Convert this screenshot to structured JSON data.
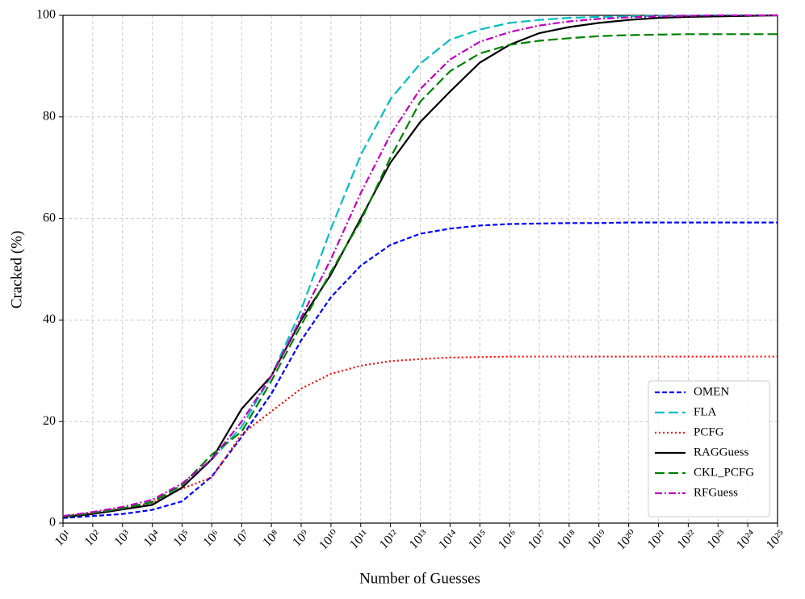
{
  "chart_data": {
    "type": "line",
    "xlabel": "Number of Guesses",
    "ylabel": "Cracked (%)",
    "xscale": "log",
    "grid": true,
    "legend": "lower right",
    "x": [
      10.0,
      100.0,
      1000.0,
      10000.0,
      100000.0,
      1000000.0,
      10000000.0,
      100000000.0,
      1000000000.0,
      10000000000.0,
      100000000000.0,
      1000000000000.0,
      10000000000000.0,
      100000000000000.0,
      1000000000000000.0,
      1e+16,
      1e+17,
      1e+18,
      1e+19,
      1e+20,
      1e+21,
      1e+22,
      1e+23,
      1e+24,
      1e+25
    ],
    "xlim": [
      10.0,
      1e+25
    ],
    "xticks": [
      {
        "value": 10.0,
        "label": "10¹"
      },
      {
        "value": 100.0,
        "label": "10²"
      },
      {
        "value": 1000.0,
        "label": "10³"
      },
      {
        "value": 10000.0,
        "label": "10⁴"
      },
      {
        "value": 100000.0,
        "label": "10⁵"
      },
      {
        "value": 1000000.0,
        "label": "10⁶"
      },
      {
        "value": 10000000.0,
        "label": "10⁷"
      },
      {
        "value": 100000000.0,
        "label": "10⁸"
      },
      {
        "value": 1000000000.0,
        "label": "10⁹"
      },
      {
        "value": 10000000000.0,
        "label": "10¹⁰"
      },
      {
        "value": 100000000000.0,
        "label": "10¹¹"
      },
      {
        "value": 1000000000000.0,
        "label": "10¹²"
      },
      {
        "value": 10000000000000.0,
        "label": "10¹³"
      },
      {
        "value": 100000000000000.0,
        "label": "10¹⁴"
      },
      {
        "value": 1000000000000000.0,
        "label": "10¹⁵"
      },
      {
        "value": 1e+16,
        "label": "10¹⁶"
      },
      {
        "value": 1e+17,
        "label": "10¹⁷"
      },
      {
        "value": 1e+18,
        "label": "10¹⁸"
      },
      {
        "value": 1e+19,
        "label": "10¹⁹"
      },
      {
        "value": 1e+20,
        "label": "10²⁰"
      },
      {
        "value": 1e+21,
        "label": "10²¹"
      },
      {
        "value": 1e+22,
        "label": "10²²"
      },
      {
        "value": 1e+23,
        "label": "10²³"
      },
      {
        "value": 1e+24,
        "label": "10²⁴"
      },
      {
        "value": 1e+25,
        "label": "10²⁵"
      }
    ],
    "ylim": [
      0,
      100
    ],
    "yticks": [
      0,
      20,
      40,
      60,
      80,
      100
    ],
    "series": [
      {
        "name": "OMEN",
        "color": "#0000ff",
        "linestyle": "--",
        "values": [
          1.0,
          1.4,
          1.8,
          2.6,
          4.3,
          9.2,
          17,
          25.5,
          36,
          44.5,
          50.7,
          54.8,
          57,
          58,
          58.6,
          58.9,
          59.0,
          59.1,
          59.1,
          59.2,
          59.2,
          59.2,
          59.2,
          59.2,
          59.2
        ]
      },
      {
        "name": "FLA",
        "color": "#00bfbf",
        "linestyle": "long-dash",
        "values": [
          1.3,
          2.0,
          2.9,
          4.0,
          7.0,
          12.5,
          19,
          29,
          42,
          58,
          72.5,
          83.5,
          90.5,
          95.2,
          97.2,
          98.5,
          99.1,
          99.5,
          99.7,
          99.8,
          99.9,
          99.9,
          100,
          100,
          100
        ]
      },
      {
        "name": "PCFG",
        "color": "#ff0000",
        "linestyle": ":",
        "values": [
          1.3,
          2.0,
          2.9,
          4.0,
          6.8,
          9.0,
          17.5,
          22,
          26.5,
          29.4,
          31,
          31.9,
          32.3,
          32.6,
          32.7,
          32.8,
          32.8,
          32.8,
          32.8,
          32.8,
          32.8,
          32.8,
          32.8,
          32.8,
          32.8
        ]
      },
      {
        "name": "RAGGuess",
        "color": "#000000",
        "linestyle": "-",
        "values": [
          1.2,
          1.8,
          2.7,
          3.6,
          7.0,
          12.6,
          22.5,
          29,
          40,
          49,
          60,
          71,
          79,
          85,
          90.7,
          94.2,
          96.5,
          97.7,
          98.5,
          99.1,
          99.5,
          99.7,
          99.8,
          99.9,
          100
        ]
      },
      {
        "name": "CKL_PCFG",
        "color": "#008000",
        "linestyle": "long-dash",
        "values": [
          1.3,
          2.0,
          2.9,
          4.2,
          7.5,
          13.5,
          18,
          28,
          39,
          49.5,
          59.5,
          72,
          83,
          89,
          92.5,
          94.2,
          95,
          95.5,
          95.9,
          96.1,
          96.2,
          96.3,
          96.3,
          96.3,
          96.3
        ]
      },
      {
        "name": "RFGuess",
        "color": "#bf00bf",
        "linestyle": "-.",
        "values": [
          1.4,
          2.2,
          3.2,
          4.6,
          7.8,
          12.6,
          20,
          29,
          40.5,
          52,
          65,
          76.5,
          85.5,
          91.3,
          94.8,
          96.7,
          98,
          98.8,
          99.3,
          99.6,
          99.8,
          99.9,
          100,
          100,
          100
        ]
      }
    ]
  }
}
